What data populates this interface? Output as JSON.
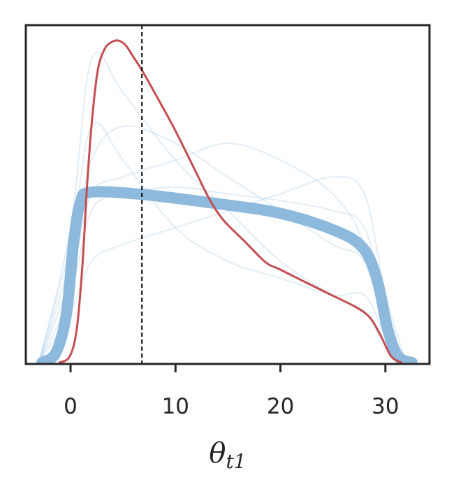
{
  "chart_data": {
    "type": "line",
    "xlabel": {
      "symbol": "θ",
      "subscript": "t1"
    },
    "xlim": [
      -4.26,
      34.2
    ],
    "ylim": [
      -0.004,
      1
    ],
    "xticks": [
      0,
      10,
      20,
      30
    ],
    "vline": 6.8,
    "series": [
      {
        "color": "#8cb9dc",
        "style": "faint",
        "x": [
          -3,
          0,
          2,
          5,
          10,
          15,
          20,
          25,
          28,
          30,
          32
        ],
        "values": [
          0,
          0.3,
          0.6,
          0.7,
          0.65,
          0.55,
          0.45,
          0.35,
          0.3,
          0.1,
          0
        ]
      },
      {
        "color": "#8cb9dc",
        "style": "faint",
        "x": [
          -3,
          0,
          2,
          5,
          10,
          15,
          20,
          25,
          28,
          30,
          32
        ],
        "values": [
          0,
          0.4,
          0.9,
          0.8,
          0.6,
          0.45,
          0.3,
          0.2,
          0.15,
          0.05,
          0
        ]
      },
      {
        "color": "#8cb9dc",
        "style": "faint",
        "x": [
          -3,
          0,
          2,
          5,
          10,
          15,
          20,
          25,
          28,
          30,
          32
        ],
        "values": [
          0,
          0.2,
          0.45,
          0.5,
          0.52,
          0.5,
          0.48,
          0.45,
          0.4,
          0.15,
          0
        ]
      },
      {
        "color": "#8cb9dc",
        "style": "faint",
        "x": [
          -3,
          0,
          2,
          5,
          10,
          15,
          20,
          25,
          28,
          30,
          32
        ],
        "values": [
          0,
          0.25,
          0.5,
          0.55,
          0.6,
          0.65,
          0.6,
          0.5,
          0.35,
          0.1,
          0
        ]
      },
      {
        "color": "#8cb9dc",
        "style": "faint",
        "x": [
          -3,
          0,
          2,
          5,
          10,
          15,
          20,
          25,
          28,
          30,
          32
        ],
        "values": [
          0,
          0.15,
          0.3,
          0.35,
          0.4,
          0.45,
          0.5,
          0.55,
          0.5,
          0.2,
          0
        ]
      },
      {
        "color": "#8cb9dc",
        "style": "faint",
        "x": [
          -3,
          0,
          2,
          5,
          10,
          15,
          20,
          25,
          28,
          30,
          32
        ],
        "values": [
          0,
          0.35,
          0.7,
          0.6,
          0.4,
          0.3,
          0.25,
          0.2,
          0.2,
          0.08,
          0
        ]
      },
      {
        "color": "#8cb9dc",
        "style": "thick",
        "x": [
          -2.73,
          -1.4,
          -0.4,
          0.27,
          0.93,
          1.93,
          6.59,
          13.24,
          19.89,
          25.22,
          27.88,
          29.21,
          30.21,
          31.2,
          32.53
        ],
        "values": [
          0,
          0.029,
          0.143,
          0.35,
          0.474,
          0.505,
          0.499,
          0.474,
          0.443,
          0.391,
          0.339,
          0.245,
          0.1,
          0.019,
          0
        ]
      },
      {
        "color": "#c44e52",
        "style": "main",
        "x": [
          -1.06,
          -0.07,
          0.6,
          1.13,
          1.6,
          2.06,
          2.6,
          3.26,
          3.93,
          4.59,
          5.26,
          5.92,
          6.79,
          7.92,
          9.91,
          11.91,
          13.24,
          14.57,
          16.57,
          18.56,
          19.89,
          21.89,
          24.55,
          27.21,
          28.54,
          29.54,
          30.54,
          31.54
        ],
        "values": [
          0,
          0.019,
          0.101,
          0.288,
          0.536,
          0.723,
          0.867,
          0.93,
          0.95,
          0.954,
          0.94,
          0.909,
          0.867,
          0.805,
          0.692,
          0.567,
          0.484,
          0.422,
          0.36,
          0.298,
          0.277,
          0.246,
          0.205,
          0.164,
          0.133,
          0.081,
          0.019,
          0
        ]
      }
    ]
  }
}
